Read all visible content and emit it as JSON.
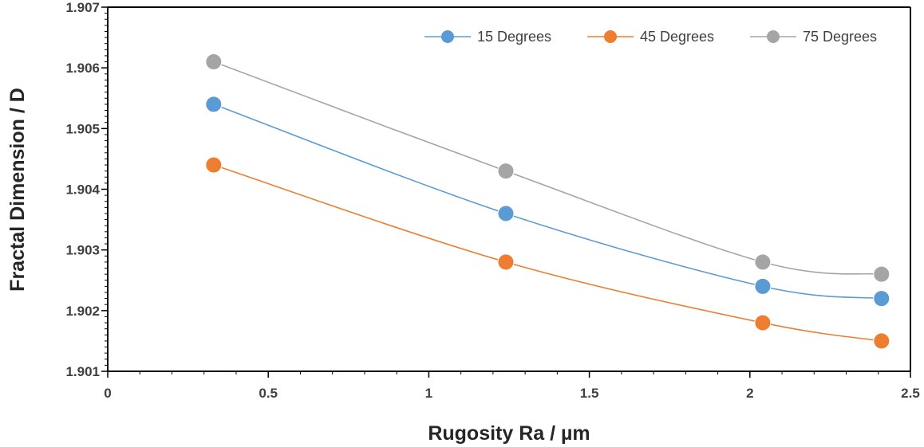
{
  "chart_data": {
    "type": "line",
    "title": "",
    "xlabel": "Rugosity Ra / µm",
    "ylabel": "Fractal Dimension / D",
    "xlim": [
      0,
      2.5
    ],
    "ylim": [
      1.901,
      1.907
    ],
    "x_ticks": [
      "0",
      "0.5",
      "1",
      "1.5",
      "2",
      "2.5"
    ],
    "y_ticks": [
      "1.901",
      "1.902",
      "1.903",
      "1.904",
      "1.905",
      "1.906",
      "1.907"
    ],
    "x": [
      0.33,
      1.24,
      2.04,
      2.41
    ],
    "grid": false,
    "legend_position": "top-right",
    "series": [
      {
        "name": "15 Degrees",
        "color": "#5b9bd5",
        "values": [
          1.9054,
          1.9036,
          1.9024,
          1.9022
        ]
      },
      {
        "name": "45 Degrees",
        "color": "#ed7d31",
        "values": [
          1.9044,
          1.9028,
          1.9018,
          1.9015
        ]
      },
      {
        "name": "75 Degrees",
        "color": "#a5a5a5",
        "values": [
          1.9061,
          1.9043,
          1.9028,
          1.9026
        ]
      }
    ]
  }
}
